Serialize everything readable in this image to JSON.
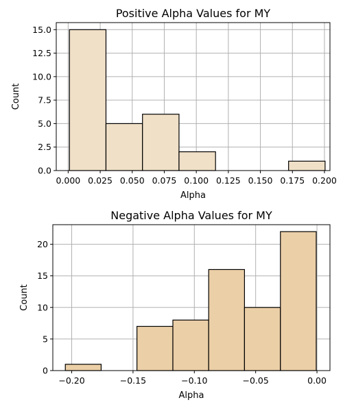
{
  "chart_data": [
    {
      "type": "bar",
      "title": "Positive Alpha Values for MY",
      "xlabel": "Alpha",
      "ylabel": "Count",
      "xlim": [
        -0.0093,
        0.2043
      ],
      "ylim": [
        0,
        15.75
      ],
      "xticks": [
        0.0,
        0.025,
        0.05,
        0.075,
        0.1,
        0.125,
        0.15,
        0.175,
        0.2
      ],
      "xtick_labels": [
        "0.000",
        "0.025",
        "0.050",
        "0.075",
        "0.100",
        "0.125",
        "0.150",
        "0.175",
        "0.200"
      ],
      "yticks": [
        0.0,
        2.5,
        5.0,
        7.5,
        10.0,
        12.5,
        15.0
      ],
      "ytick_labels": [
        "0.0",
        "2.5",
        "5.0",
        "7.5",
        "10.0",
        "12.5",
        "15.0"
      ],
      "grid": true,
      "bar_color": "#f0e0c8",
      "bins": [
        {
          "start": 0.001,
          "end": 0.0295,
          "count": 15
        },
        {
          "start": 0.0295,
          "end": 0.058,
          "count": 5
        },
        {
          "start": 0.058,
          "end": 0.0865,
          "count": 6
        },
        {
          "start": 0.0865,
          "end": 0.115,
          "count": 2
        },
        {
          "start": 0.115,
          "end": 0.1435,
          "count": 0
        },
        {
          "start": 0.1435,
          "end": 0.172,
          "count": 0
        },
        {
          "start": 0.172,
          "end": 0.2005,
          "count": 1
        }
      ]
    },
    {
      "type": "bar",
      "title": "Negative Alpha Values for MY",
      "xlabel": "Alpha",
      "ylabel": "Count",
      "xlim": [
        -0.2154,
        0.0106
      ],
      "ylim": [
        0,
        23.1
      ],
      "xticks": [
        -0.2,
        -0.15,
        -0.1,
        -0.05,
        0.0
      ],
      "xtick_labels": [
        "−0.20",
        "−0.15",
        "−0.10",
        "−0.05",
        "0.00"
      ],
      "yticks": [
        0,
        5,
        10,
        15,
        20
      ],
      "ytick_labels": [
        "0",
        "5",
        "10",
        "15",
        "20"
      ],
      "grid": true,
      "bar_color": "#ebcfa7",
      "bins": [
        {
          "start": -0.2052,
          "end": -0.176,
          "count": 1
        },
        {
          "start": -0.176,
          "end": -0.1468,
          "count": 0
        },
        {
          "start": -0.1468,
          "end": -0.1175,
          "count": 7
        },
        {
          "start": -0.1175,
          "end": -0.0883,
          "count": 8
        },
        {
          "start": -0.0883,
          "end": -0.0591,
          "count": 16
        },
        {
          "start": -0.0591,
          "end": -0.0298,
          "count": 10
        },
        {
          "start": -0.0298,
          "end": -0.0006,
          "count": 22
        }
      ]
    }
  ]
}
